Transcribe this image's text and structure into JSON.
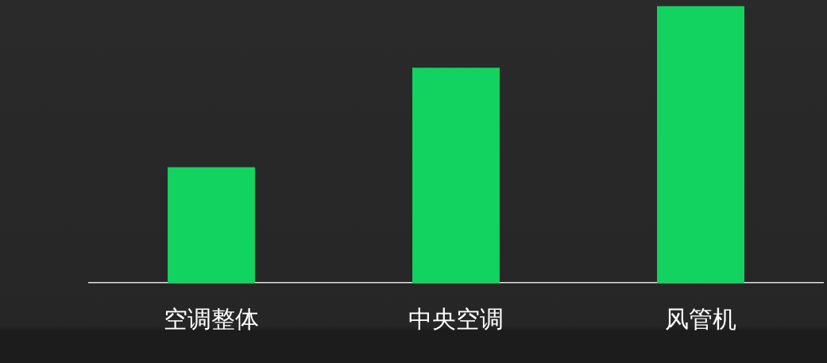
{
  "chart_data": {
    "type": "bar",
    "categories": [
      "空调整体",
      "中央空调",
      "风管机"
    ],
    "values": [
      158,
      294,
      378
    ],
    "color": "#12d35f",
    "ylim": [
      0,
      380
    ],
    "grid": false,
    "tick_labels": "x"
  }
}
